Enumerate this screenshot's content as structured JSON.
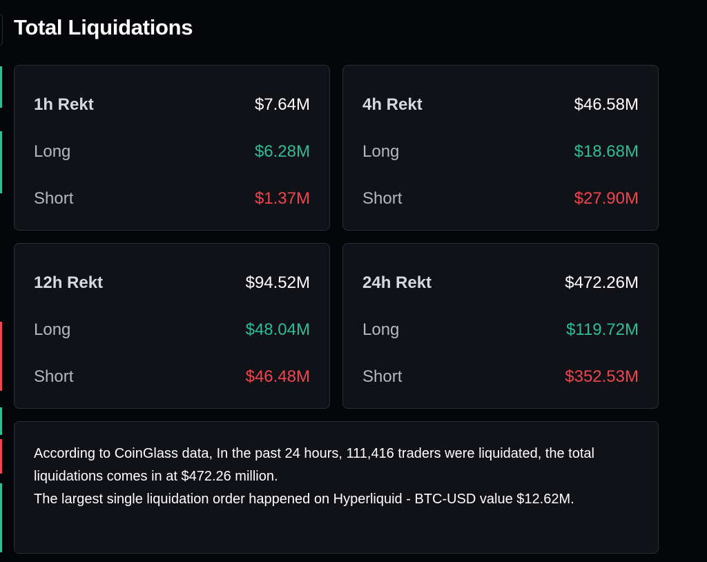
{
  "header": {
    "title": "Total Liquidations"
  },
  "cards": [
    {
      "rows": [
        {
          "label": "1h Rekt",
          "value": "$7.64M"
        },
        {
          "label": "Long",
          "value": "$6.28M"
        },
        {
          "label": "Short",
          "value": "$1.37M"
        }
      ]
    },
    {
      "rows": [
        {
          "label": "4h Rekt",
          "value": "$46.58M"
        },
        {
          "label": "Long",
          "value": "$18.68M"
        },
        {
          "label": "Short",
          "value": "$27.90M"
        }
      ]
    },
    {
      "rows": [
        {
          "label": "12h Rekt",
          "value": "$94.52M"
        },
        {
          "label": "Long",
          "value": "$48.04M"
        },
        {
          "label": "Short",
          "value": "$46.48M"
        }
      ]
    },
    {
      "rows": [
        {
          "label": "24h Rekt",
          "value": "$472.26M"
        },
        {
          "label": "Long",
          "value": "$119.72M"
        },
        {
          "label": "Short",
          "value": "$352.53M"
        }
      ]
    }
  ],
  "summary": {
    "paragraphs": [
      "According to CoinGlass data, In the past 24 hours, 111,416 traders were liquidated, the total liquidations comes in at $472.26 million.",
      "The largest single liquidation order happened on Hyperliquid - BTC-USD value $12.62M."
    ]
  }
}
